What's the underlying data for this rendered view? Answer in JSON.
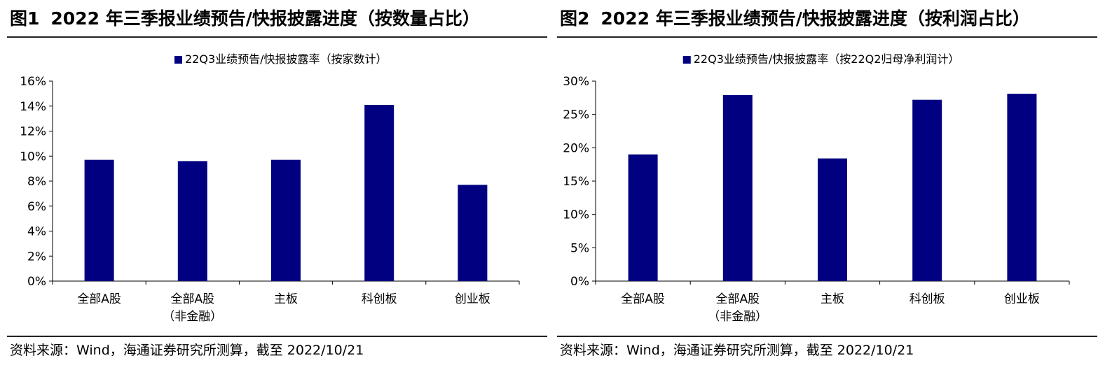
{
  "figures": [
    {
      "id": "panel-1",
      "number": "图1",
      "title": "2022 年三季报业绩预告/快报披露进度（按数量占比）",
      "source": "资料来源：Wind，海通证券研究所测算，截至 2022/10/21"
    },
    {
      "id": "panel-2",
      "number": "图2",
      "title": "2022 年三季报业绩预告/快报披露进度（按利润占比）",
      "source": "资料来源：Wind，海通证券研究所测算，截至 2022/10/21"
    }
  ],
  "chart_data": [
    {
      "type": "bar",
      "categories": [
        [
          "全部A股"
        ],
        [
          "全部A股",
          "（非金融）"
        ],
        [
          "主板"
        ],
        [
          "科创板"
        ],
        [
          "创业板"
        ]
      ],
      "series": [
        {
          "name": "22Q3业绩预告/快报披露率（按家数计）",
          "values": [
            9.7,
            9.6,
            9.7,
            14.1,
            7.7
          ],
          "color": "#000080"
        }
      ],
      "ylim": [
        0,
        16
      ],
      "yticks": [
        0,
        2,
        4,
        6,
        8,
        10,
        12,
        14,
        16
      ],
      "ytick_labels": [
        "0%",
        "2%",
        "4%",
        "6%",
        "8%",
        "10%",
        "12%",
        "14%",
        "16%"
      ],
      "legend_position": "top-center",
      "grid": false
    },
    {
      "type": "bar",
      "categories": [
        [
          "全部A股"
        ],
        [
          "全部A股",
          "（非金融）"
        ],
        [
          "主板"
        ],
        [
          "科创板"
        ],
        [
          "创业板"
        ]
      ],
      "series": [
        {
          "name": "22Q3业绩预告/快报披露率（按22Q2归母净利润计）",
          "values": [
            19.0,
            27.9,
            18.4,
            27.2,
            28.1
          ],
          "color": "#000080"
        }
      ],
      "ylim": [
        0,
        30
      ],
      "yticks": [
        0,
        5,
        10,
        15,
        20,
        25,
        30
      ],
      "ytick_labels": [
        "0%",
        "5%",
        "10%",
        "15%",
        "20%",
        "25%",
        "30%"
      ],
      "legend_position": "top-center",
      "grid": false
    }
  ]
}
